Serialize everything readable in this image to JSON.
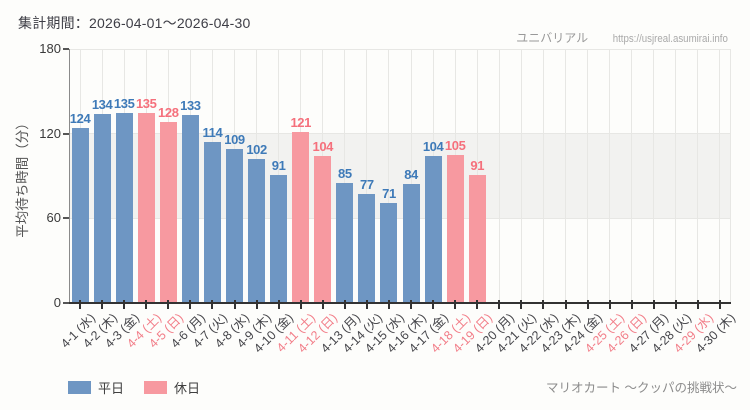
{
  "header": {
    "period_label": "集計期間：2026-04-01～2026-04-30"
  },
  "watermark": {
    "site_name": "ユニバリアル",
    "site_url": "https://usjreal.asumirai.info"
  },
  "footer": {
    "attraction_name": "マリオカート ～クッパの挑戦状～"
  },
  "legend": {
    "position": "bottom-left",
    "items": [
      {
        "label": "平日",
        "type": "weekday"
      },
      {
        "label": "休日",
        "type": "holiday"
      }
    ]
  },
  "colors": {
    "weekday_bar": "#6e96c3",
    "holiday_bar": "#f799a0",
    "weekday_value_label": "#3e7ab8",
    "holiday_value_label": "#f5707c",
    "weekday_tick_label": "#45454a",
    "holiday_tick_label": "#f27d88",
    "band": "#f2f2f0",
    "grid": "#e7e7e4",
    "axis": "#333333"
  },
  "chart_data": {
    "type": "bar",
    "title": "",
    "xlabel": "",
    "ylabel": "平均待ち時間（分）",
    "ylim": [
      0,
      180
    ],
    "yticks": [
      0,
      60,
      120,
      180
    ],
    "band": {
      "from": 60,
      "to": 120
    },
    "grid": "vertical lines at each day; shaded horizontal band 60-120",
    "categories": [
      "4-1 (水)",
      "4-2 (木)",
      "4-3 (金)",
      "4-4 (土)",
      "4-5 (日)",
      "4-6 (月)",
      "4-7 (火)",
      "4-8 (水)",
      "4-9 (木)",
      "4-10 (金)",
      "4-11 (土)",
      "4-12 (日)",
      "4-13 (月)",
      "4-14 (火)",
      "4-15 (水)",
      "4-16 (木)",
      "4-17 (金)",
      "4-18 (土)",
      "4-19 (日)",
      "4-20 (月)",
      "4-21 (火)",
      "4-22 (水)",
      "4-23 (木)",
      "4-24 (金)",
      "4-25 (土)",
      "4-26 (日)",
      "4-27 (月)",
      "4-28 (火)",
      "4-29 (水)",
      "4-30 (木)"
    ],
    "day_types": [
      "weekday",
      "weekday",
      "weekday",
      "holiday",
      "holiday",
      "weekday",
      "weekday",
      "weekday",
      "weekday",
      "weekday",
      "holiday",
      "holiday",
      "weekday",
      "weekday",
      "weekday",
      "weekday",
      "weekday",
      "holiday",
      "holiday",
      "weekday",
      "weekday",
      "weekday",
      "weekday",
      "weekday",
      "holiday",
      "holiday",
      "weekday",
      "weekday",
      "holiday",
      "weekday"
    ],
    "values": [
      124,
      134,
      135,
      135,
      128,
      133,
      114,
      109,
      102,
      91,
      121,
      104,
      85,
      77,
      71,
      84,
      104,
      105,
      91,
      null,
      null,
      null,
      null,
      null,
      null,
      null,
      null,
      null,
      null,
      null
    ]
  }
}
